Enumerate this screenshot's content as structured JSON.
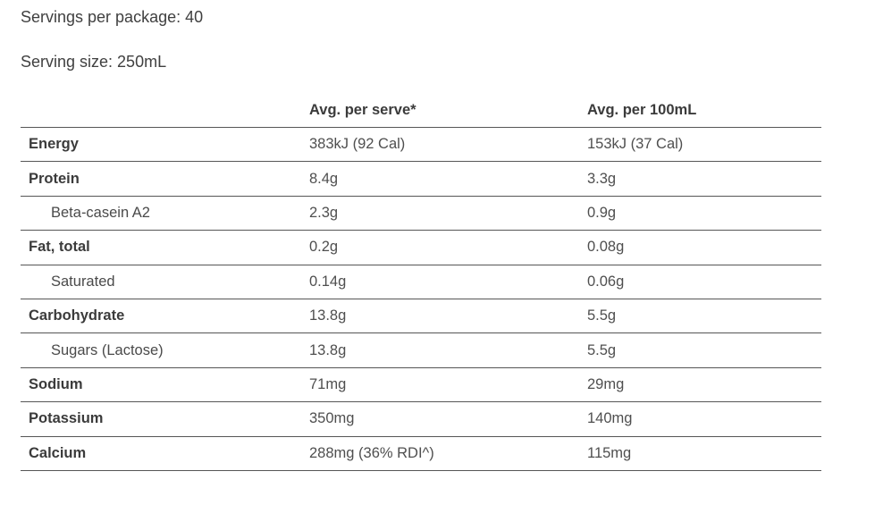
{
  "intro": {
    "servings_per_package": "Servings per package: 40",
    "serving_size": "Serving size: 250mL"
  },
  "table": {
    "columns": {
      "nutrient": "",
      "per_serve": "Avg. per serve*",
      "per_100ml": "Avg. per 100mL"
    },
    "rows": [
      {
        "name": "Energy",
        "indent": false,
        "per_serve": "383kJ (92 Cal)",
        "per_100ml": "153kJ (37 Cal)"
      },
      {
        "name": "Protein",
        "indent": false,
        "per_serve": "8.4g",
        "per_100ml": "3.3g"
      },
      {
        "name": "Beta-casein A2",
        "indent": true,
        "per_serve": "2.3g",
        "per_100ml": "0.9g"
      },
      {
        "name": "Fat, total",
        "indent": false,
        "per_serve": "0.2g",
        "per_100ml": "0.08g"
      },
      {
        "name": "Saturated",
        "indent": true,
        "per_serve": "0.14g",
        "per_100ml": "0.06g"
      },
      {
        "name": "Carbohydrate",
        "indent": false,
        "per_serve": "13.8g",
        "per_100ml": "5.5g"
      },
      {
        "name": "Sugars (Lactose)",
        "indent": true,
        "per_serve": "13.8g",
        "per_100ml": "5.5g"
      },
      {
        "name": "Sodium",
        "indent": false,
        "per_serve": "71mg",
        "per_100ml": "29mg"
      },
      {
        "name": "Potassium",
        "indent": false,
        "per_serve": "350mg",
        "per_100ml": "140mg"
      },
      {
        "name": "Calcium",
        "indent": false,
        "per_serve": "288mg (36% RDI^)",
        "per_100ml": "115mg"
      }
    ]
  },
  "colors": {
    "background": "#ffffff",
    "text": "#3b3b3b",
    "value_text": "#4f4f4f",
    "rule_line": "#565656"
  }
}
